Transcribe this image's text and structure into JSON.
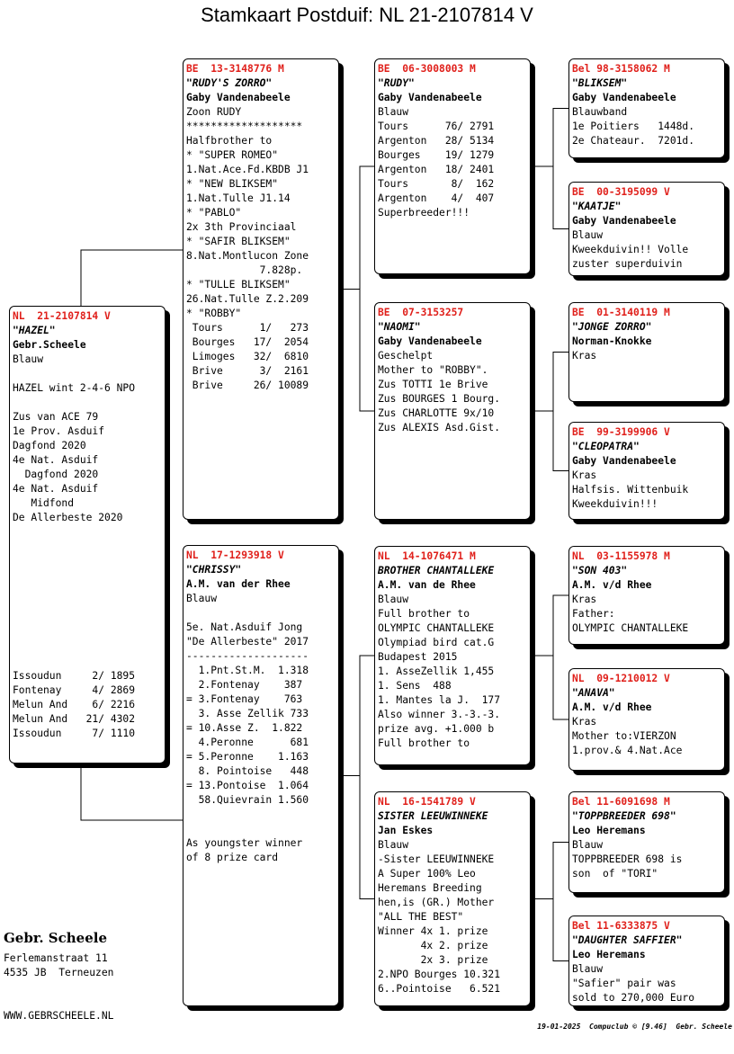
{
  "title": "Stamkaart Postduif: NL  21-2107814 V",
  "cards": [
    {
      "id": "NL  21-2107814 V",
      "name": "\"HAZEL\"",
      "owner": "Gebr.Scheele",
      "blocks": [
        [
          "Blauw"
        ],
        [
          "HAZEL wint 2-4-6 NPO"
        ],
        [
          "Zus van ACE 79",
          "1e Prov. Asduif",
          "Dagfond 2020",
          "4e Nat. Asduif",
          "  Dagfond 2020",
          "4e Nat. Asduif",
          "   Midfond",
          "De Allerbeste 2020"
        ],
        [
          "Issoudun     2/ 1895",
          "Fontenay     4/ 2869",
          "Melun And    6/ 2216",
          "Melun And   21/ 4302",
          "Issoudun     7/ 1110"
        ]
      ]
    },
    {
      "id": "BE  13-3148776 M",
      "name": "\"RUDY'S ZORRO\"",
      "owner": "Gaby Vandenabeele",
      "blocks": [
        [
          "Zoon RUDY",
          "*******************",
          "Halfbrother to",
          "* \"SUPER ROMEO\"",
          "1.Nat.Ace.Fd.KBDB J1",
          "* \"NEW BLIKSEM\"",
          "1.Nat.Tulle J1.14",
          "* \"PABLO\"",
          "2x 3th Provinciaal",
          "* \"SAFIR BLIKSEM\"",
          "8.Nat.Montlucon Zone",
          "            7.828p.",
          "* \"TULLE BLIKSEM\"",
          "26.Nat.Tulle Z.2.209",
          "* \"ROBBY\"",
          " Tours      1/   273",
          " Bourges   17/  2054",
          " Limoges   32/  6810",
          " Brive      3/  2161",
          " Brive     26/ 10089"
        ]
      ]
    },
    {
      "id": "NL  17-1293918 V",
      "name": "\"CHRISSY\"",
      "owner": "A.M. van der Rhee",
      "blocks": [
        [
          "Blauw"
        ],
        [
          "5e. Nat.Asduif Jong",
          "\"De Allerbeste\" 2017",
          "--------------------",
          "  1.Pnt.St.M.  1.318",
          "  2.Fontenay    387",
          "= 3.Fontenay    763",
          "  3. Asse Zellik 733",
          "= 10.Asse Z.  1.822",
          "  4.Peronne      681",
          "= 5.Peronne    1.163",
          "  8. Pointoise   448",
          "= 13.Pontoise  1.064",
          "  58.Quievrain 1.560"
        ],
        [
          "As youngster winner",
          "of 8 prize card"
        ]
      ]
    },
    {
      "id": "BE  06-3008003 M",
      "name": "\"RUDY\"",
      "owner": "Gaby Vandenabeele",
      "blocks": [
        [
          "Blauw",
          "Tours      76/ 2791",
          "Argenton   28/ 5134",
          "Bourges    19/ 1279",
          "Argenton   18/ 2401",
          "Tours       8/  162",
          "Argenton    4/  407",
          "Superbreeder!!!"
        ]
      ]
    },
    {
      "id": "BE  07-3153257",
      "name": "\"NAOMI\"",
      "owner": "Gaby Vandenabeele",
      "blocks": [
        [
          "Geschelpt",
          "Mother to \"ROBBY\".",
          "Zus TOTTI 1e Brive",
          "Zus BOURGES 1 Bourg.",
          "Zus CHARLOTTE 9x/10",
          "Zus ALEXIS Asd.Gist."
        ]
      ]
    },
    {
      "id": "NL  14-1076471 M",
      "name": "BROTHER CHANTALLEKE",
      "owner": "A.M. van de Rhee",
      "blocks": [
        [
          "Blauw",
          "Full brother to",
          "OLYMPIC CHANTALLEKE",
          "Olympiad bird cat.G",
          "Budapest 2015",
          "1. AsseZellik 1,455",
          "1. Sens  488",
          "1. Mantes la J.  177",
          "Also winner 3.-3.-3.",
          "prize avg. +1.000 b",
          "Full brother to"
        ]
      ]
    },
    {
      "id": "NL  16-1541789 V",
      "name": "SISTER LEEUWINNEKE",
      "owner": "Jan Eskes",
      "blocks": [
        [
          "Blauw",
          "-Sister LEEUWINNEKE",
          "A Super 100% Leo",
          "Heremans Breeding",
          "hen,is (GR.) Mother",
          "\"ALL THE BEST\"",
          "Winner 4x 1. prize",
          "       4x 2. prize",
          "       2x 3. prize",
          "2.NPO Bourges 10.321",
          "6..Pointoise   6.521"
        ]
      ]
    },
    {
      "id": "Bel 98-3158062 M",
      "name": "\"BLIKSEM\"",
      "owner": "Gaby Vandenabeele",
      "blocks": [
        [
          "Blauwband",
          "1e Poitiers   1448d.",
          "2e Chateaur.  7201d."
        ]
      ]
    },
    {
      "id": "BE  00-3195099 V",
      "name": "\"KAATJE\"",
      "owner": "Gaby Vandenabeele",
      "blocks": [
        [
          "Blauw",
          "Kweekduivin!! Volle",
          "zuster superduivin"
        ]
      ]
    },
    {
      "id": "BE  01-3140119 M",
      "name": "\"JONGE ZORRO\"",
      "owner": "Norman-Knokke",
      "blocks": [
        [
          "Kras"
        ]
      ]
    },
    {
      "id": "BE  99-3199906 V",
      "name": "\"CLEOPATRA\"",
      "owner": "Gaby Vandenabeele",
      "blocks": [
        [
          "Kras",
          "Halfsis. Wittenbuik",
          "Kweekduivin!!!"
        ]
      ]
    },
    {
      "id": "NL  03-1155978 M",
      "name": "\"SON 403\"",
      "owner": "A.M. v/d Rhee",
      "blocks": [
        [
          "Kras",
          "Father:",
          "OLYMPIC CHANTALLEKE"
        ]
      ]
    },
    {
      "id": "NL  09-1210012 V",
      "name": "\"ANAVA\"",
      "owner": "A.M. v/d Rhee",
      "blocks": [
        [
          "Kras",
          "Mother to:VIERZON",
          "1.prov.& 4.Nat.Ace"
        ]
      ]
    },
    {
      "id": "Bel 11-6091698 M",
      "name": "\"TOPPBREEDER 698\"",
      "owner": "Leo Heremans",
      "blocks": [
        [
          "Blauw",
          "TOPPBREEDER 698 is",
          "son  of \"TORI\""
        ]
      ]
    },
    {
      "id": "Bel 11-6333875 V",
      "name": "\"DAUGHTER SAFFIER\"",
      "owner": "Leo Heremans",
      "blocks": [
        [
          "Blauw",
          "\"Safier\" pair was",
          "sold to 270,000 Euro"
        ]
      ]
    }
  ],
  "footer": {
    "breeder": "Gebr. Scheele",
    "address": [
      "Ferlemanstraat 11",
      "4535 JB  Terneuzen"
    ],
    "website": "WWW.GEBRSCHEELE.NL",
    "credit": "19-01-2025  Compuclub © [9.46]  Gebr. Scheele"
  }
}
